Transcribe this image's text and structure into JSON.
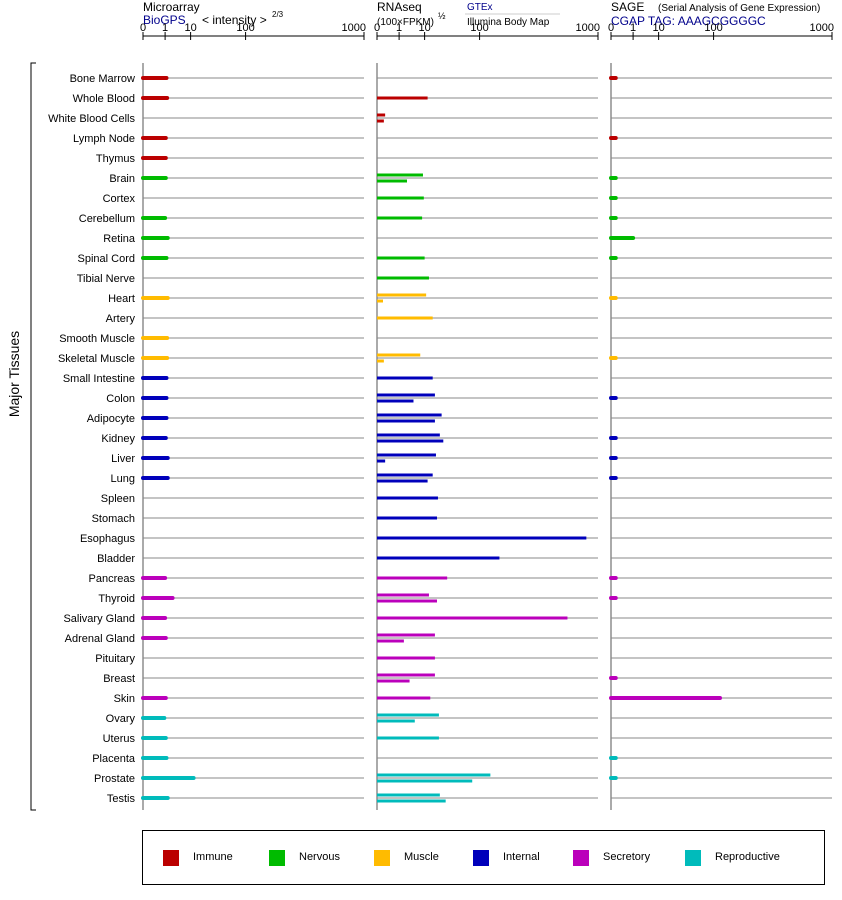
{
  "panels": [
    {
      "title": "Microarray",
      "subtitle_source": "BioGPS",
      "subtitle_metric": "< intensity >",
      "metric_exponent": "2/3"
    },
    {
      "title": "RNAseq",
      "unit": "(100×FPKM)",
      "unit_exponent": "½",
      "source_link": "GTEx",
      "source_sub": "Illumina Body Map"
    },
    {
      "title": "SAGE",
      "title_note": "(Serial Analysis of Gene Expression)",
      "subtitle": "CGAP TAG: AAAGCGGGGC"
    }
  ],
  "axis_label": "Major Tissues",
  "legend": [
    {
      "label": "Immune",
      "color": "#bb0000"
    },
    {
      "label": "Nervous",
      "color": "#00bb00"
    },
    {
      "label": "Muscle",
      "color": "#ffbb00"
    },
    {
      "label": "Internal",
      "color": "#0000bb"
    },
    {
      "label": "Secretory",
      "color": "#bb00bb"
    },
    {
      "label": "Reproductive",
      "color": "#00bbbb"
    }
  ],
  "chart_data": {
    "type": "bar",
    "scale": "log",
    "xlim": [
      0,
      1000
    ],
    "tick_labels": [
      "0",
      "1",
      "10",
      "100",
      "1000"
    ],
    "tissues": [
      {
        "name": "Bone Marrow",
        "group": "Immune",
        "microarray": [
          1.2
        ],
        "rnaseq": [],
        "sage": [
          0.01
        ]
      },
      {
        "name": "Whole Blood",
        "group": "Immune",
        "microarray": [
          1.3
        ],
        "rnaseq": [
          12
        ],
        "sage": []
      },
      {
        "name": "White Blood Cells",
        "group": "Immune",
        "microarray": [],
        "rnaseq": [
          0.05,
          0.03
        ],
        "sage": []
      },
      {
        "name": "Lymph Node",
        "group": "Immune",
        "microarray": [
          1.1
        ],
        "rnaseq": [],
        "sage": [
          0.01
        ]
      },
      {
        "name": "Thymus",
        "group": "Immune",
        "microarray": [
          1.1
        ],
        "rnaseq": [],
        "sage": []
      },
      {
        "name": "Brain",
        "group": "Nervous",
        "microarray": [
          1.1
        ],
        "rnaseq": [
          9,
          2.5
        ],
        "sage": [
          0.01
        ]
      },
      {
        "name": "Cortex",
        "group": "Nervous",
        "microarray": [],
        "rnaseq": [
          9.5
        ],
        "sage": [
          0.01
        ]
      },
      {
        "name": "Cerebellum",
        "group": "Nervous",
        "microarray": [
          1.0
        ],
        "rnaseq": [
          8.5
        ],
        "sage": [
          0.01
        ]
      },
      {
        "name": "Retina",
        "group": "Nervous",
        "microarray": [
          1.4
        ],
        "rnaseq": [],
        "sage": [
          1.0
        ]
      },
      {
        "name": "Spinal Cord",
        "group": "Nervous",
        "microarray": [
          1.2
        ],
        "rnaseq": [
          10
        ],
        "sage": [
          0.01
        ]
      },
      {
        "name": "Tibial Nerve",
        "group": "Nervous",
        "microarray": [],
        "rnaseq": [
          13
        ],
        "sage": []
      },
      {
        "name": "Heart",
        "group": "Muscle",
        "microarray": [
          1.4
        ],
        "rnaseq": [
          11,
          0.02
        ],
        "sage": [
          0.01
        ]
      },
      {
        "name": "Artery",
        "group": "Muscle",
        "microarray": [],
        "rnaseq": [
          16
        ],
        "sage": []
      },
      {
        "name": "Smooth Muscle",
        "group": "Muscle",
        "microarray": [
          1.3
        ],
        "rnaseq": [],
        "sage": []
      },
      {
        "name": "Skeletal Muscle",
        "group": "Muscle",
        "microarray": [
          1.3
        ],
        "rnaseq": [
          7.5,
          0.03
        ],
        "sage": [
          0.01
        ]
      },
      {
        "name": "Small Intestine",
        "group": "Internal",
        "microarray": [
          1.2
        ],
        "rnaseq": [
          16
        ],
        "sage": []
      },
      {
        "name": "Colon",
        "group": "Internal",
        "microarray": [
          1.2
        ],
        "rnaseq": [
          18,
          4.5
        ],
        "sage": [
          0.01
        ]
      },
      {
        "name": "Adipocyte",
        "group": "Internal",
        "microarray": [
          1.2
        ],
        "rnaseq": [
          25,
          18
        ],
        "sage": []
      },
      {
        "name": "Kidney",
        "group": "Internal",
        "microarray": [
          1.1
        ],
        "rnaseq": [
          23,
          27
        ],
        "sage": [
          0.01
        ]
      },
      {
        "name": "Liver",
        "group": "Internal",
        "microarray": [
          1.4
        ],
        "rnaseq": [
          19,
          0.05
        ],
        "sage": [
          0.01
        ]
      },
      {
        "name": "Lung",
        "group": "Internal",
        "microarray": [
          1.4
        ],
        "rnaseq": [
          16,
          12
        ],
        "sage": [
          0.01
        ]
      },
      {
        "name": "Spleen",
        "group": "Internal",
        "microarray": [],
        "rnaseq": [
          21
        ],
        "sage": []
      },
      {
        "name": "Stomach",
        "group": "Internal",
        "microarray": [],
        "rnaseq": [
          20
        ],
        "sage": []
      },
      {
        "name": "Esophagus",
        "group": "Internal",
        "microarray": [],
        "rnaseq": [
          850
        ],
        "sage": []
      },
      {
        "name": "Bladder",
        "group": "Internal",
        "microarray": [],
        "rnaseq": [
          170
        ],
        "sage": []
      },
      {
        "name": "Pancreas",
        "group": "Secretory",
        "microarray": [
          1.0
        ],
        "rnaseq": [
          32
        ],
        "sage": [
          0.01
        ]
      },
      {
        "name": "Thyroid",
        "group": "Secretory",
        "microarray": [
          2.4
        ],
        "rnaseq": [
          13,
          20
        ],
        "sage": [
          0.01
        ]
      },
      {
        "name": "Salivary Gland",
        "group": "Secretory",
        "microarray": [
          1.0
        ],
        "rnaseq": [
          640
        ],
        "sage": []
      },
      {
        "name": "Adrenal Gland",
        "group": "Secretory",
        "microarray": [
          1.1
        ],
        "rnaseq": [
          18,
          1.8
        ],
        "sage": []
      },
      {
        "name": "Pituitary",
        "group": "Secretory",
        "microarray": [],
        "rnaseq": [
          18
        ],
        "sage": []
      },
      {
        "name": "Breast",
        "group": "Secretory",
        "microarray": [],
        "rnaseq": [
          18,
          3.2
        ],
        "sage": [
          0.01
        ]
      },
      {
        "name": "Skin",
        "group": "Secretory",
        "microarray": [
          1.1
        ],
        "rnaseq": [
          14
        ],
        "sage": [
          120
        ]
      },
      {
        "name": "Ovary",
        "group": "Reproductive",
        "microarray": [
          0.9
        ],
        "rnaseq": [
          22,
          5
        ]
      },
      {
        "name": "Uterus",
        "group": "Reproductive",
        "microarray": [
          1.1
        ],
        "rnaseq": [
          22
        ],
        "sage": []
      },
      {
        "name": "Placenta",
        "group": "Reproductive",
        "microarray": [
          1.2
        ],
        "rnaseq": [],
        "sage": [
          0.01
        ]
      },
      {
        "name": "Prostate",
        "group": "Reproductive",
        "microarray": [
          12
        ],
        "rnaseq": [
          135,
          80
        ],
        "sage": [
          0.01
        ]
      },
      {
        "name": "Testis",
        "group": "Reproductive",
        "microarray": [
          1.4
        ],
        "rnaseq": [
          23,
          30
        ],
        "sage": []
      }
    ]
  }
}
